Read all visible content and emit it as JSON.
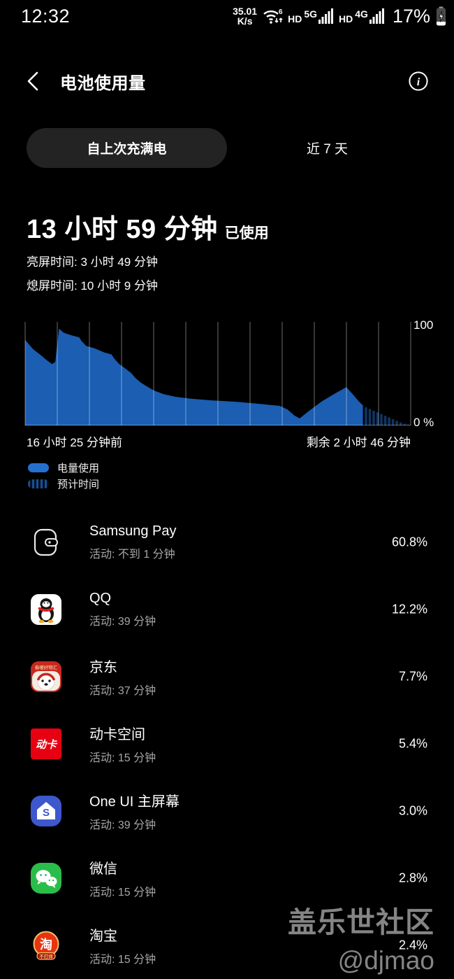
{
  "status_bar": {
    "time": "12:32",
    "net_speed_value": "35.01",
    "net_speed_unit": "K/s",
    "wifi_generation": "6",
    "sim1_hd": "HD",
    "sim1_net": "5G",
    "sim2_hd": "HD",
    "sim2_net": "4G",
    "battery_percent": "17%"
  },
  "header": {
    "title": "电池使用量"
  },
  "tabs": {
    "selected": "自上次充满电",
    "other": "近 7 天"
  },
  "summary": {
    "duration": "13 小时 59 分钟",
    "suffix": "已使用",
    "screen_on": "亮屏时间: 3 小时 49 分钟",
    "screen_off": "熄屏时间: 10 小时 9 分钟"
  },
  "chart_data": {
    "type": "area",
    "title": "电池使用量图表",
    "ylim": [
      0,
      100
    ],
    "y_max_label": "100",
    "y_min_label": "0 %",
    "x_left_label": "16 小时 25 分钟前",
    "x_right_label": "剩余 2 小时 46 分钟",
    "gridlines": 13,
    "legend_position": "bottom-left",
    "colors": {
      "area": "#1b5eb2",
      "legend_solid": "#2470cf",
      "gridline": "rgba(255,255,255,0.33)"
    },
    "series": [
      {
        "name": "电量使用",
        "kind": "solid-area",
        "points": [
          [
            0,
            85
          ],
          [
            2,
            76
          ],
          [
            4,
            70
          ],
          [
            5.5,
            65
          ],
          [
            7,
            61
          ],
          [
            7.8,
            63
          ],
          [
            8.8,
            96
          ],
          [
            10,
            92
          ],
          [
            12,
            89.5
          ],
          [
            14,
            87.5
          ],
          [
            14.6,
            84
          ],
          [
            15.8,
            79
          ],
          [
            18,
            76.5
          ],
          [
            20.5,
            72.5
          ],
          [
            22.4,
            70.5
          ],
          [
            23.2,
            66
          ],
          [
            24.4,
            61
          ],
          [
            26,
            56.5
          ],
          [
            27.5,
            52
          ],
          [
            28.6,
            47
          ],
          [
            30,
            42.5
          ],
          [
            31.7,
            38.5
          ],
          [
            33.5,
            34.5
          ],
          [
            36,
            31
          ],
          [
            39,
            28.5
          ],
          [
            43,
            26.5
          ],
          [
            48,
            25
          ],
          [
            55,
            23.5
          ],
          [
            62,
            21
          ],
          [
            66,
            19.5
          ],
          [
            68,
            16
          ],
          [
            69.8,
            10
          ],
          [
            71.2,
            7
          ],
          [
            73.5,
            14
          ],
          [
            77,
            24
          ],
          [
            80.5,
            32
          ],
          [
            83.3,
            38
          ],
          [
            85.2,
            30
          ],
          [
            86.5,
            24
          ],
          [
            87.6,
            20
          ]
        ]
      },
      {
        "name": "预计时间",
        "kind": "striped-forecast",
        "bars": [
          [
            88.4,
            18
          ],
          [
            89.4,
            16.3
          ],
          [
            90.4,
            14.6
          ],
          [
            91.4,
            13
          ],
          [
            92.4,
            11.3
          ],
          [
            93.4,
            9.6
          ],
          [
            94.4,
            8
          ],
          [
            95.4,
            6.3
          ],
          [
            96.4,
            4.6
          ],
          [
            97.4,
            3
          ],
          [
            98.4,
            1.8
          ],
          [
            99.3,
            0.9
          ]
        ]
      }
    ]
  },
  "legend": [
    {
      "label": "电量使用",
      "swatch": "solid"
    },
    {
      "label": "预计时间",
      "swatch": "striped"
    }
  ],
  "apps": [
    {
      "icon": "samsung-pay",
      "name": "Samsung Pay",
      "activity": "活动: 不到 1 分钟",
      "percent": "60.8%"
    },
    {
      "icon": "qq",
      "name": "QQ",
      "activity": "活动: 39 分钟",
      "percent": "12.2%"
    },
    {
      "icon": "jd",
      "name": "京东",
      "activity": "活动: 37 分钟",
      "percent": "7.7%"
    },
    {
      "icon": "dongka",
      "name": "动卡空间",
      "activity": "活动: 15 分钟",
      "percent": "5.4%"
    },
    {
      "icon": "oneui-home",
      "name": "One UI 主屏幕",
      "activity": "活动: 39 分钟",
      "percent": "3.0%"
    },
    {
      "icon": "wechat",
      "name": "微信",
      "activity": "活动: 15 分钟",
      "percent": "2.8%"
    },
    {
      "icon": "taobao",
      "name": "淘宝",
      "activity": "活动: 15 分钟",
      "percent": "2.4%"
    }
  ],
  "watermark": {
    "line1": "盖乐世社区",
    "line2": "@djmao"
  }
}
